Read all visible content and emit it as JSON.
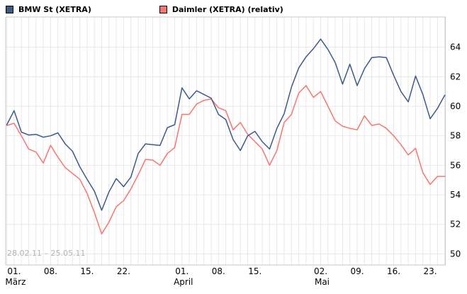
{
  "legend": {
    "items": [
      {
        "label": "BMW St (XETRA)",
        "color": "#3d5a8a"
      },
      {
        "label": "Daimler (XETRA) (relativ)",
        "color": "#f9766f"
      }
    ]
  },
  "watermark": "28.02.11 – 25.05.11",
  "colors": {
    "bmw_line": "#3d5a8a",
    "daimler_line": "#f9766f",
    "grid": "#e8e8e8",
    "plot_border": "#c9c9c9",
    "axis_text": "#000000",
    "watermark_text": "#b4b4b4",
    "background": "#ffffff"
  },
  "chart_data": {
    "type": "line",
    "title": "",
    "xlabel": "",
    "ylabel": "",
    "date_range": "28.02.11 – 25.05.11",
    "grid": true,
    "legend_position": "top-left",
    "y_axis_side": "right",
    "ylim": [
      49.2,
      66.0
    ],
    "y_ticks": [
      64,
      62,
      60,
      58,
      56,
      54,
      52,
      50
    ],
    "x": [
      "28.02",
      "01.03",
      "02.03",
      "03.03",
      "04.03",
      "07.03",
      "08.03",
      "09.03",
      "10.03",
      "11.03",
      "14.03",
      "15.03",
      "16.03",
      "17.03",
      "18.03",
      "21.03",
      "22.03",
      "23.03",
      "24.03",
      "25.03",
      "28.03",
      "29.03",
      "30.03",
      "31.03",
      "01.04",
      "04.04",
      "05.04",
      "06.04",
      "07.04",
      "08.04",
      "11.04",
      "12.04",
      "13.04",
      "14.04",
      "15.04",
      "18.04",
      "19.04",
      "20.04",
      "21.04",
      "26.04",
      "27.04",
      "28.04",
      "29.04",
      "02.05",
      "03.05",
      "04.05",
      "05.05",
      "06.05",
      "09.05",
      "10.05",
      "11.05",
      "12.05",
      "13.05",
      "16.05",
      "17.05",
      "18.05",
      "19.05",
      "20.05",
      "23.05",
      "24.05",
      "25.05"
    ],
    "x_ticks": [
      {
        "index": 1,
        "label": "01.",
        "month": "März"
      },
      {
        "index": 6,
        "label": "08."
      },
      {
        "index": 11,
        "label": "15."
      },
      {
        "index": 16,
        "label": "22."
      },
      {
        "index": 24,
        "label": "01.",
        "month": "April"
      },
      {
        "index": 29,
        "label": "08."
      },
      {
        "index": 34,
        "label": "15."
      },
      {
        "index": 43,
        "label": "02.",
        "month": "Mai"
      },
      {
        "index": 48,
        "label": "09."
      },
      {
        "index": 53,
        "label": "16."
      },
      {
        "index": 58,
        "label": "23."
      }
    ],
    "series": [
      {
        "name": "BMW St (XETRA)",
        "color": "#3d5a8a",
        "values": [
          58.75,
          59.7,
          58.25,
          58.05,
          58.1,
          57.9,
          58.0,
          58.2,
          57.45,
          56.95,
          55.9,
          55.05,
          54.25,
          52.95,
          54.2,
          55.1,
          54.55,
          55.2,
          56.8,
          57.45,
          57.4,
          57.35,
          58.55,
          58.75,
          61.25,
          60.5,
          61.05,
          60.8,
          60.55,
          59.45,
          59.1,
          57.75,
          57.0,
          58.0,
          58.3,
          57.6,
          57.1,
          58.5,
          59.5,
          61.3,
          62.6,
          63.35,
          63.9,
          64.55,
          63.85,
          62.95,
          61.5,
          62.85,
          61.4,
          62.55,
          63.3,
          63.35,
          63.3,
          62.1,
          61.0,
          60.3,
          62.05,
          60.8,
          59.15,
          59.85,
          60.75
        ]
      },
      {
        "name": "Daimler (XETRA) (relativ)",
        "color": "#f9766f",
        "values": [
          58.7,
          58.85,
          58.0,
          57.1,
          56.9,
          56.15,
          57.35,
          56.55,
          55.85,
          55.45,
          55.05,
          54.1,
          52.8,
          51.35,
          52.15,
          53.2,
          53.6,
          54.4,
          55.35,
          56.4,
          56.35,
          56.0,
          56.8,
          57.2,
          59.45,
          59.45,
          60.15,
          60.4,
          60.5,
          59.9,
          59.7,
          58.4,
          58.9,
          58.1,
          57.6,
          57.1,
          56.0,
          57.0,
          58.9,
          59.45,
          60.9,
          61.4,
          60.6,
          61.0,
          60.0,
          59.0,
          58.65,
          58.5,
          58.4,
          59.35,
          58.7,
          58.8,
          58.5,
          58.0,
          57.4,
          56.7,
          57.15,
          55.5,
          54.7,
          55.25,
          55.25
        ]
      }
    ]
  }
}
